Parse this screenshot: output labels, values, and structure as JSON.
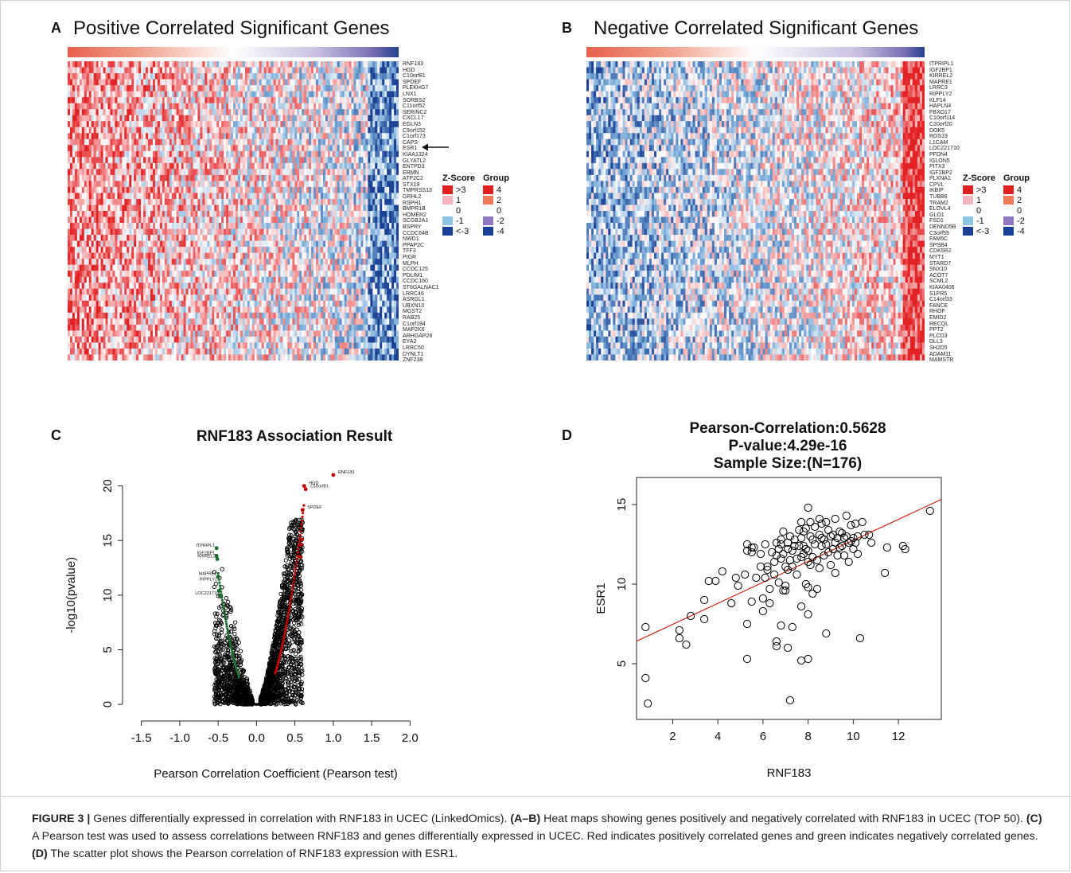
{
  "panels": {
    "A": {
      "letter": "A",
      "title": "Positive Correlated Significant Genes",
      "genes": [
        "RNF183",
        "HGD",
        "C10orf81",
        "SPDEF",
        "PLEKHG7",
        "LNX1",
        "SORBS2",
        "C11orf52",
        "SERINC2",
        "CXCL17",
        "EGLN3",
        "C9orf152",
        "C1orf173",
        "CAPS",
        "ESR1",
        "KIAA1324",
        "GLYATL2",
        "ENTPD3",
        "ERMN",
        "ATP2C2",
        "STX19",
        "TMPRSS13",
        "GRHL2",
        "RSPH1",
        "BMPR1B",
        "HOMER2",
        "SCGB2A1",
        "BSPRY",
        "CCDC64B",
        "NWD1",
        "PPAP2C",
        "TFF3",
        "PIGR",
        "MLPH",
        "CCDC125",
        "PDLIM1",
        "CCDC160",
        "ST6GALNAC1",
        "LRRC46",
        "ASRGL1",
        "UBXN10",
        "MGST2",
        "RAB25",
        "C1orf194",
        "MAP2K6",
        "ARHGAP26",
        "EYA2",
        "LRRC50",
        "DYNLT1",
        "ZNF238"
      ],
      "arrow_label": "ESR1"
    },
    "B": {
      "letter": "B",
      "title": "Negative Correlated Significant Genes",
      "genes": [
        "ITPRIPL1",
        "IGF2BP1",
        "KIRREL2",
        "MAPRE1",
        "LRRC3",
        "RIPPLY2",
        "KLF14",
        "HAPLN4",
        "FBXO17",
        "C10orf114",
        "C20orf20",
        "DOK5",
        "RGS19",
        "L1CAM",
        "LOC221710",
        "PFDN4",
        "IGLON5",
        "PITX3",
        "IGF2BP2",
        "PLXNA1",
        "CPVL",
        "IKBIP",
        "TUBB6",
        "TRAM2",
        "ELOVL4",
        "GLO1",
        "FSD1",
        "DENND5B",
        "C3orf59",
        "FAM5C",
        "SPSB4",
        "CDK5R2",
        "MYT1",
        "STARD7",
        "SNX10",
        "ACOT7",
        "SCML2",
        "KIAA0406",
        "S1PR5",
        "C14orf33",
        "FANCE",
        "RHOF",
        "EMID2",
        "RECQL",
        "PPT2",
        "PLCD3",
        "DLL3",
        "SH2D5",
        "ADAM11",
        "MAMSTR"
      ]
    },
    "C": {
      "letter": "C"
    },
    "D": {
      "letter": "D"
    }
  },
  "legend": {
    "zscore_header": "Z-Score",
    "group_header": "Group",
    "zscore_items": [
      {
        "label": ">3",
        "color": "#e02020"
      },
      {
        "label": "1",
        "color": "#f4b4c0"
      },
      {
        "label": "0",
        "color": "#ffffff"
      },
      {
        "label": "-1",
        "color": "#8ec5e0"
      },
      {
        "label": "<-3",
        "color": "#1b3f94"
      }
    ],
    "group_items": [
      {
        "label": "4",
        "color": "#e02020"
      },
      {
        "label": "2",
        "color": "#ef7a5a"
      },
      {
        "label": "0",
        "color": "#ffffff"
      },
      {
        "label": "-2",
        "color": "#8f78c0"
      },
      {
        "label": "-4",
        "color": "#1b3f94"
      }
    ]
  },
  "chart_data": [
    {
      "type": "scatter",
      "panel": "C",
      "title": "RNF183 Association Result",
      "xlabel": "Pearson Correlation Coefficient (Pearson test)",
      "ylabel": "-log10(pvalue)",
      "xlim": [
        -1.6,
        2.1
      ],
      "ylim": [
        -0.5,
        21.5
      ],
      "xticks": [
        "-1.5",
        "-1.0",
        "-0.5",
        "0.0",
        "0.5",
        "1.0",
        "1.5",
        "2.0"
      ],
      "yticks": [
        "0",
        "5",
        "10",
        "15",
        "20"
      ],
      "series": [
        {
          "color": "#c00000",
          "points": [
            [
              1.0,
              21.0
            ],
            [
              0.62,
              20.0
            ],
            [
              0.64,
              19.7
            ],
            [
              0.6,
              17.8
            ],
            [
              0.59,
              15.1
            ],
            [
              0.58,
              14.6
            ],
            [
              0.57,
              13.5
            ]
          ]
        },
        {
          "color": "#1a6b2e",
          "points": [
            [
              -0.52,
              14.3
            ],
            [
              -0.52,
              13.6
            ],
            [
              -0.51,
              13.3
            ],
            [
              -0.5,
              11.7
            ],
            [
              -0.49,
              10.4
            ],
            [
              -0.48,
              10.0
            ]
          ]
        }
      ],
      "annotations": [
        {
          "label": "RNF183",
          "x": 1.0,
          "y": 21.0
        },
        {
          "label": "HGD",
          "x": 0.62,
          "y": 20.0
        },
        {
          "label": "C10orf81",
          "x": 0.64,
          "y": 19.7
        },
        {
          "label": "SPDEF",
          "x": 0.6,
          "y": 17.8
        },
        {
          "label": "ITPRIPL1",
          "x": -0.52,
          "y": 14.3
        },
        {
          "label": "IGF2BP1",
          "x": -0.52,
          "y": 13.6
        },
        {
          "label": "KIRREL2",
          "x": -0.51,
          "y": 13.3
        },
        {
          "label": "MAPRE1",
          "x": -0.5,
          "y": 11.7
        },
        {
          "label": "RIPPLY2",
          "x": -0.49,
          "y": 11.2
        },
        {
          "label": "LOC221710",
          "x": -0.47,
          "y": 9.9
        }
      ]
    },
    {
      "type": "scatter",
      "panel": "D",
      "title_lines": [
        "Pearson-Correlation:0.5628",
        "P-value:4.29e-16",
        "Sample Size:(N=176)"
      ],
      "xlabel": "RNF183",
      "ylabel": "ESR1",
      "xlim": [
        0.4,
        13.9
      ],
      "ylim": [
        1.5,
        16.7
      ],
      "xticks": [
        2,
        4,
        6,
        8,
        10,
        12
      ],
      "yticks": [
        5,
        10,
        15
      ],
      "regression_line": {
        "intercept": 6.15,
        "slope": 0.66,
        "color": "#d0281c"
      },
      "points": [
        [
          0.8,
          7.3
        ],
        [
          0.8,
          4.1
        ],
        [
          0.9,
          2.5
        ],
        [
          2.3,
          7.1
        ],
        [
          2.3,
          6.6
        ],
        [
          2.6,
          6.2
        ],
        [
          2.8,
          8.0
        ],
        [
          3.4,
          7.8
        ],
        [
          3.4,
          9.0
        ],
        [
          3.6,
          10.2
        ],
        [
          3.9,
          10.2
        ],
        [
          4.2,
          10.8
        ],
        [
          4.6,
          8.8
        ],
        [
          4.8,
          10.4
        ],
        [
          4.9,
          9.9
        ],
        [
          5.2,
          10.6
        ],
        [
          5.3,
          12.5
        ],
        [
          5.3,
          12.1
        ],
        [
          5.3,
          7.5
        ],
        [
          5.3,
          5.3
        ],
        [
          5.5,
          12.3
        ],
        [
          5.5,
          12.0
        ],
        [
          5.5,
          8.9
        ],
        [
          5.6,
          12.3
        ],
        [
          5.7,
          10.4
        ],
        [
          5.9,
          11.9
        ],
        [
          5.9,
          11.1
        ],
        [
          6.0,
          9.1
        ],
        [
          6.0,
          8.3
        ],
        [
          6.1,
          12.5
        ],
        [
          6.1,
          10.4
        ],
        [
          6.2,
          10.9
        ],
        [
          6.2,
          11.1
        ],
        [
          6.3,
          9.7
        ],
        [
          6.3,
          8.8
        ],
        [
          6.4,
          12.0
        ],
        [
          6.5,
          11.4
        ],
        [
          6.5,
          10.6
        ],
        [
          6.6,
          12.6
        ],
        [
          6.6,
          11.8
        ],
        [
          6.6,
          6.4
        ],
        [
          6.6,
          6.1
        ],
        [
          6.7,
          12.2
        ],
        [
          6.7,
          10.1
        ],
        [
          6.8,
          12.8
        ],
        [
          6.8,
          12.5
        ],
        [
          6.8,
          11.6
        ],
        [
          6.8,
          7.4
        ],
        [
          6.9,
          13.3
        ],
        [
          6.9,
          11.9
        ],
        [
          6.9,
          9.6
        ],
        [
          7.0,
          11.1
        ],
        [
          7.0,
          9.9
        ],
        [
          7.0,
          9.6
        ],
        [
          7.1,
          12.6
        ],
        [
          7.1,
          12.2
        ],
        [
          7.1,
          10.9
        ],
        [
          7.1,
          6.0
        ],
        [
          7.2,
          13.0
        ],
        [
          7.2,
          11.5
        ],
        [
          7.2,
          2.7
        ],
        [
          7.3,
          12.1
        ],
        [
          7.3,
          11.1
        ],
        [
          7.3,
          7.3
        ],
        [
          7.4,
          12.8
        ],
        [
          7.4,
          12.4
        ],
        [
          7.5,
          11.6
        ],
        [
          7.5,
          10.6
        ],
        [
          7.6,
          13.4
        ],
        [
          7.6,
          12.4
        ],
        [
          7.7,
          13.9
        ],
        [
          7.7,
          12.9
        ],
        [
          7.7,
          11.7
        ],
        [
          7.7,
          8.6
        ],
        [
          7.7,
          5.2
        ],
        [
          7.8,
          13.3
        ],
        [
          7.8,
          12.4
        ],
        [
          7.8,
          11.9
        ],
        [
          7.9,
          13.5
        ],
        [
          7.9,
          12.2
        ],
        [
          7.9,
          10.0
        ],
        [
          8.0,
          14.8
        ],
        [
          8.0,
          12.1
        ],
        [
          8.0,
          11.4
        ],
        [
          8.0,
          9.8
        ],
        [
          8.0,
          8.1
        ],
        [
          8.0,
          5.3
        ],
        [
          8.1,
          13.9
        ],
        [
          8.1,
          13.0
        ],
        [
          8.1,
          11.2
        ],
        [
          8.2,
          12.8
        ],
        [
          8.2,
          11.7
        ],
        [
          8.2,
          9.4
        ],
        [
          8.3,
          13.6
        ],
        [
          8.3,
          12.5
        ],
        [
          8.4,
          11.5
        ],
        [
          8.4,
          9.7
        ],
        [
          8.5,
          14.1
        ],
        [
          8.5,
          13.1
        ],
        [
          8.5,
          11.0
        ],
        [
          8.6,
          13.8
        ],
        [
          8.6,
          12.9
        ],
        [
          8.6,
          12.4
        ],
        [
          8.7,
          12.8
        ],
        [
          8.7,
          11.8
        ],
        [
          8.8,
          13.9
        ],
        [
          8.8,
          12.5
        ],
        [
          8.8,
          6.9
        ],
        [
          8.9,
          13.4
        ],
        [
          8.9,
          12.0
        ],
        [
          9.0,
          13.0
        ],
        [
          9.0,
          11.2
        ],
        [
          9.1,
          13.1
        ],
        [
          9.1,
          12.2
        ],
        [
          9.2,
          14.1
        ],
        [
          9.2,
          12.6
        ],
        [
          9.2,
          10.7
        ],
        [
          9.3,
          12.9
        ],
        [
          9.3,
          11.8
        ],
        [
          9.4,
          13.3
        ],
        [
          9.4,
          12.3
        ],
        [
          9.5,
          13.2
        ],
        [
          9.5,
          12.4
        ],
        [
          9.6,
          12.9
        ],
        [
          9.6,
          11.8
        ],
        [
          9.7,
          14.3
        ],
        [
          9.7,
          13.0
        ],
        [
          9.8,
          12.6
        ],
        [
          9.8,
          11.4
        ],
        [
          9.9,
          13.7
        ],
        [
          9.9,
          12.7
        ],
        [
          10.0,
          12.9
        ],
        [
          10.0,
          12.2
        ],
        [
          10.1,
          13.8
        ],
        [
          10.1,
          12.6
        ],
        [
          10.2,
          13.0
        ],
        [
          10.2,
          11.9
        ],
        [
          10.3,
          6.6
        ],
        [
          10.4,
          13.9
        ],
        [
          10.5,
          13.1
        ],
        [
          10.7,
          13.1
        ],
        [
          10.8,
          12.6
        ],
        [
          11.4,
          10.7
        ],
        [
          11.5,
          12.3
        ],
        [
          12.2,
          12.4
        ],
        [
          12.3,
          12.2
        ],
        [
          13.4,
          14.6
        ]
      ]
    }
  ],
  "caption": {
    "fig_label": "FIGURE 3 |",
    "p1": " Genes differentially expressed in correlation with RNF183 in UCEC (LinkedOmics). ",
    "b1": "(A–B)",
    "p2": " Heat maps showing genes positively and negatively correlated with RNF183 in UCEC (TOP 50). ",
    "b2": "(C)",
    "p3": " A Pearson test was used to assess correlations between RNF183 and genes differentially expressed in UCEC. Red indicates positively correlated genes and green indicates negatively correlated genes. ",
    "b3": "(D)",
    "p4": " The scatter plot shows the Pearson correlation of RNF183 expression with ESR1."
  }
}
